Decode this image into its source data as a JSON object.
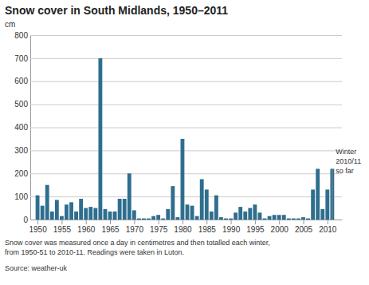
{
  "chart_data": {
    "type": "bar",
    "title": "Snow cover in South Midlands, 1950–2011",
    "ylabel": "cm",
    "x": [
      1950,
      1951,
      1952,
      1953,
      1954,
      1955,
      1956,
      1957,
      1958,
      1959,
      1960,
      1961,
      1962,
      1963,
      1964,
      1965,
      1966,
      1967,
      1968,
      1969,
      1970,
      1971,
      1972,
      1973,
      1974,
      1975,
      1976,
      1977,
      1978,
      1979,
      1980,
      1981,
      1982,
      1983,
      1984,
      1985,
      1986,
      1987,
      1988,
      1989,
      1990,
      1991,
      1992,
      1993,
      1994,
      1995,
      1996,
      1997,
      1998,
      1999,
      2000,
      2001,
      2002,
      2003,
      2004,
      2005,
      2006,
      2007,
      2008,
      2009,
      2010,
      2011
    ],
    "values": [
      105,
      60,
      150,
      35,
      85,
      15,
      65,
      75,
      35,
      90,
      50,
      55,
      50,
      700,
      45,
      35,
      35,
      90,
      90,
      200,
      40,
      5,
      5,
      5,
      15,
      20,
      5,
      45,
      145,
      10,
      350,
      65,
      60,
      15,
      175,
      130,
      35,
      105,
      10,
      5,
      5,
      30,
      55,
      35,
      50,
      65,
      30,
      5,
      15,
      20,
      20,
      20,
      5,
      5,
      5,
      10,
      5,
      130,
      220,
      45,
      130,
      220
    ],
    "color": "#2e6e8e",
    "xlim": [
      1948.5,
      2013.0
    ],
    "xticks": [
      1950,
      1955,
      1960,
      1965,
      1970,
      1975,
      1980,
      1985,
      1990,
      1995,
      2000,
      2005,
      2010
    ],
    "ylim": [
      0,
      800
    ],
    "yticks": [
      0,
      100,
      200,
      300,
      400,
      500,
      600,
      700,
      800
    ],
    "grid": true,
    "annotations": [
      {
        "text": "Winter\n2010/11\nso far",
        "x": 2011,
        "y": 310
      }
    ],
    "caption_lines": [
      "Snow cover was measured once a day in centimetres and then totalled each winter,",
      "from 1950-51 to 2010-11. Readings were taken in Luton."
    ],
    "source": "Source: weather-uk"
  }
}
